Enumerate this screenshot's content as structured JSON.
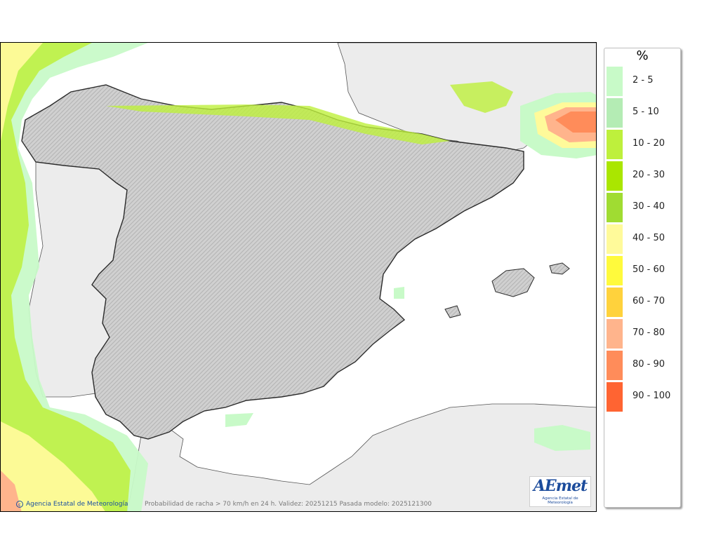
{
  "legend": {
    "unit": "%",
    "items": [
      {
        "label": "2 - 5",
        "color": "#c8fac8"
      },
      {
        "label": "5 - 10",
        "color": "#b4ecb4"
      },
      {
        "label": "10 - 20",
        "color": "#bef03c"
      },
      {
        "label": "20 - 30",
        "color": "#aae600"
      },
      {
        "label": "30 - 40",
        "color": "#a0dc32"
      },
      {
        "label": "40 - 50",
        "color": "#fffa9a"
      },
      {
        "label": "50 - 60",
        "color": "#fffa3c"
      },
      {
        "label": "60 - 70",
        "color": "#ffd23c"
      },
      {
        "label": "70 - 80",
        "color": "#ffb48c"
      },
      {
        "label": "80 - 90",
        "color": "#ff8c5a"
      },
      {
        "label": "90 - 100",
        "color": "#ff6432"
      }
    ]
  },
  "map": {
    "copyright": "Agencia Estatal de Meteorología",
    "caption": "Probabilidad de racha > 70 km/h en 24 h. Validez: 20251215 Pasada modelo: 2025121300",
    "logo_text": "AEmet",
    "logo_subtitle": "Agencia Estatal de Meteorología",
    "colors": {
      "sea": "#ffffff",
      "foreign_land": "#ececec",
      "spain_land": "#d2d2d2",
      "borders": "#2b2b2b"
    }
  }
}
